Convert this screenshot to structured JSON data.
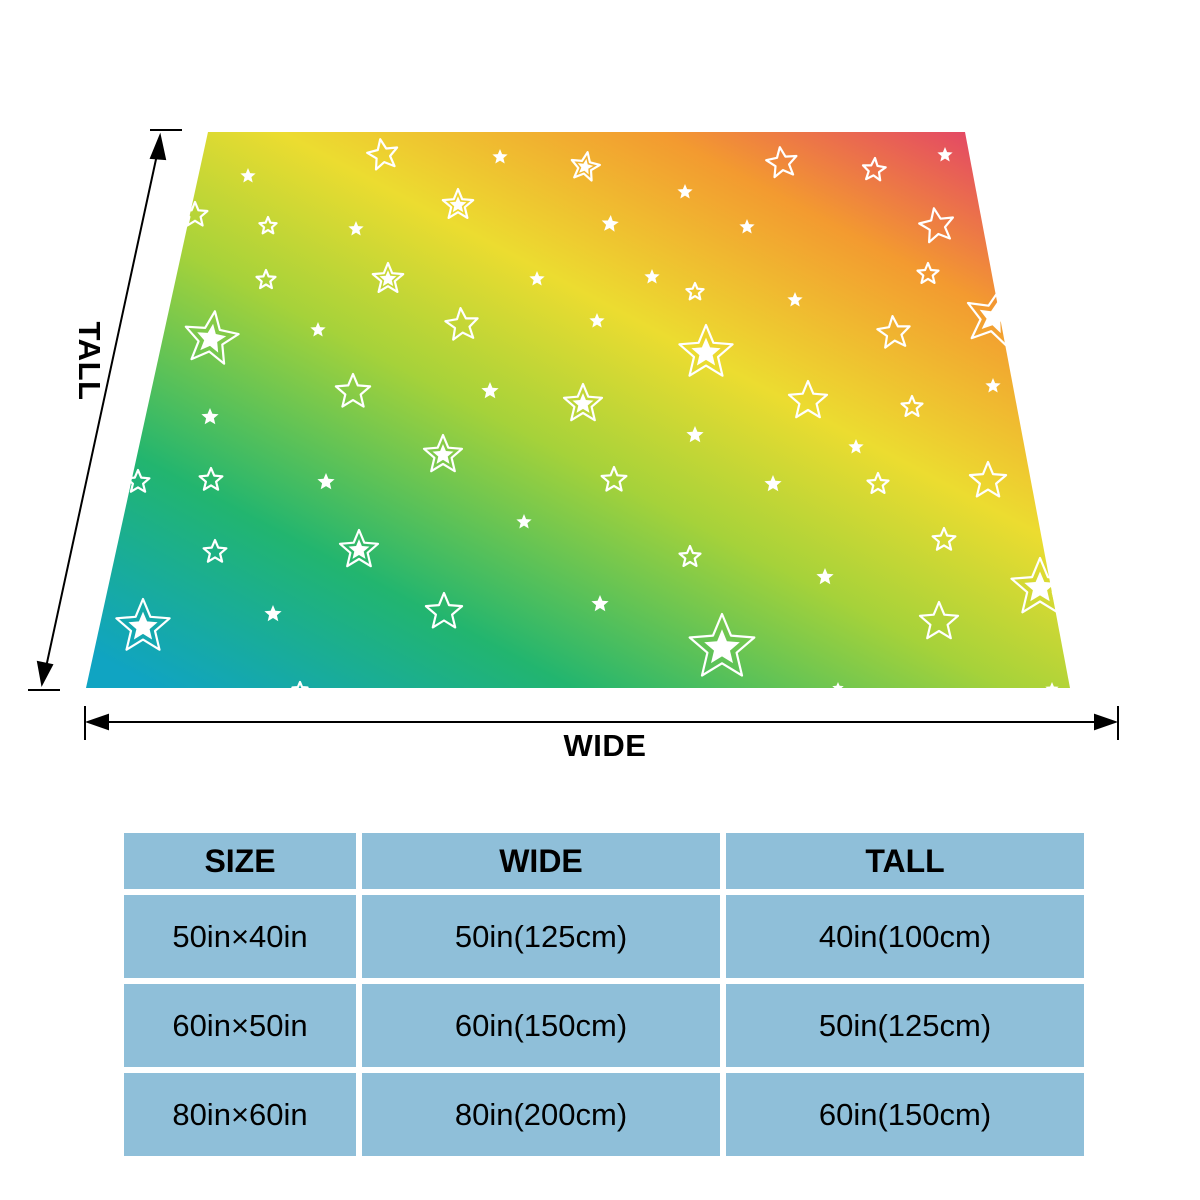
{
  "diagram": {
    "wide_label": "WIDE",
    "tall_label": "TALL",
    "blanket_colors": [
      "#e33b6e",
      "#f3902e",
      "#ecd830",
      "#b6d63a",
      "#1fb77a",
      "#10a4c2"
    ]
  },
  "size_table": {
    "headers": [
      "SIZE",
      "WIDE",
      "TALL"
    ],
    "rows": [
      [
        "50in×40in",
        "50in(125cm)",
        "40in(100cm)"
      ],
      [
        "60in×50in",
        "60in(150cm)",
        "50in(125cm)"
      ],
      [
        "80in×60in",
        "80in(200cm)",
        "60in(150cm)"
      ]
    ],
    "cell_color": "#8fbfd9"
  }
}
